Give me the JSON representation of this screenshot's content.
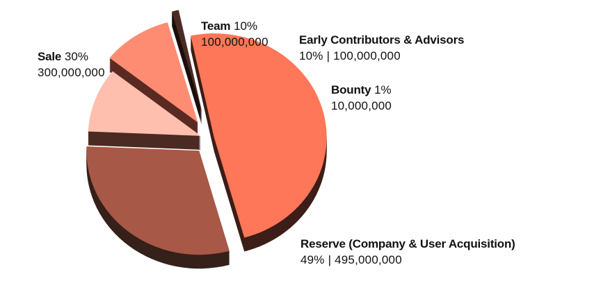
{
  "chart_data": {
    "type": "pie",
    "style": "3d-exploded",
    "slices": [
      {
        "name": "Reserve (Company & User Acquisition)",
        "percent": 49,
        "percent_label": "49%",
        "amount": "495,000,000",
        "color": "#fe7758",
        "side_color": "#3d1e18"
      },
      {
        "name": "Sale",
        "percent": 30,
        "percent_label": "30%",
        "amount": "300,000,000",
        "color": "#a85846",
        "side_color": "#36201a"
      },
      {
        "name": "Team",
        "percent": 10,
        "percent_label": "10%",
        "amount": "100,000,000",
        "color": "#febfae",
        "side_color": "#4a2a22"
      },
      {
        "name": "Early Contributors & Advisors",
        "percent": 10,
        "percent_label": "10%",
        "amount": "100,000,000",
        "color": "#fe8c73",
        "side_color": "#5a2a22"
      },
      {
        "name": "Bounty",
        "percent": 1,
        "percent_label": "1%",
        "amount": "10,000,000",
        "color": "#4a2b24",
        "side_color": "#1c0f0c"
      }
    ],
    "separator": "|"
  }
}
